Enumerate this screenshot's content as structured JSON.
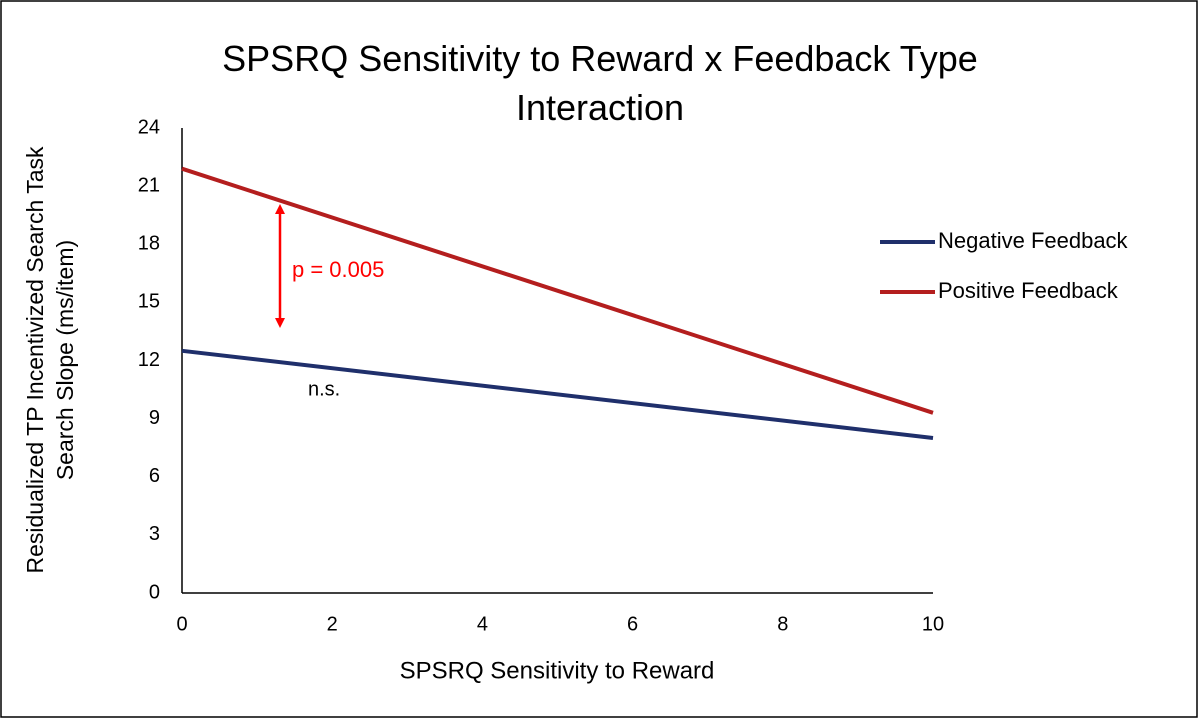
{
  "chart_data": {
    "type": "line",
    "title": "SPSRQ Sensitivity to Reward x Feedback Type Interaction",
    "x_label": "SPSRQ Sensitivity to Reward",
    "y_label": "Residualized TP Incentivized Search Task Search Slope (ms/item)",
    "x": [
      0,
      10
    ],
    "series": [
      {
        "name": "Negative Feedback",
        "color": "#1f2f6b",
        "values": [
          12.5,
          8.0
        ]
      },
      {
        "name": "Positive Feedback",
        "color": "#b41e1e",
        "values": [
          21.9,
          9.3
        ]
      }
    ],
    "xlim": [
      0,
      10
    ],
    "xticks": [
      0,
      2,
      4,
      6,
      8,
      10
    ],
    "ylim": [
      0,
      24
    ],
    "yticks": [
      0,
      3,
      6,
      9,
      12,
      15,
      18,
      21,
      24
    ],
    "grid": false,
    "legend": "right",
    "annotations": [
      "p = 0.005",
      "n.s."
    ]
  }
}
